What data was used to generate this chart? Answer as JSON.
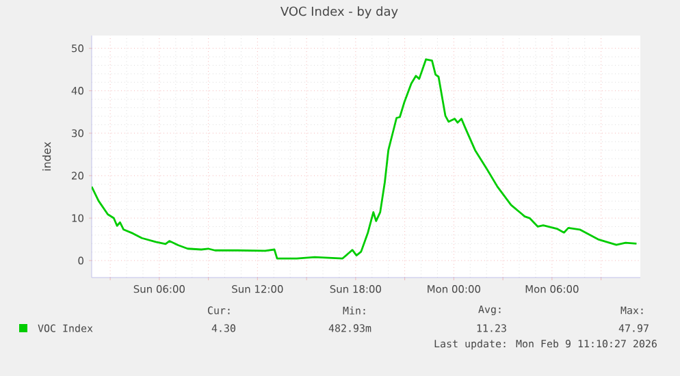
{
  "chart_data": {
    "type": "line",
    "title": "VOC Index - by day",
    "ylabel": "index",
    "x": [
      "2026-02-08T01:52",
      "2026-02-08T02:17",
      "2026-02-08T02:51",
      "2026-02-08T03:13",
      "2026-02-08T03:25",
      "2026-02-08T03:36",
      "2026-02-08T03:49",
      "2026-02-08T04:23",
      "2026-02-08T04:56",
      "2026-02-08T05:47",
      "2026-02-08T06:23",
      "2026-02-08T06:37",
      "2026-02-08T07:10",
      "2026-02-08T07:44",
      "2026-02-08T08:34",
      "2026-02-08T08:59",
      "2026-02-08T09:24",
      "2026-02-08T10:48",
      "2026-02-08T12:28",
      "2026-02-08T13:02",
      "2026-02-08T13:12",
      "2026-02-08T14:24",
      "2026-02-08T15:30",
      "2026-02-08T17:12",
      "2026-02-08T17:48",
      "2026-02-08T18:03",
      "2026-02-08T18:20",
      "2026-02-08T18:45",
      "2026-02-08T19:05",
      "2026-02-08T19:15",
      "2026-02-08T19:30",
      "2026-02-08T19:47",
      "2026-02-08T20:00",
      "2026-02-08T20:17",
      "2026-02-08T20:30",
      "2026-02-08T20:42",
      "2026-02-08T20:59",
      "2026-02-08T21:24",
      "2026-02-08T21:41",
      "2026-02-08T21:53",
      "2026-02-08T22:18",
      "2026-02-08T22:40",
      "2026-02-08T22:53",
      "2026-02-08T23:04",
      "2026-02-08T23:29",
      "2026-02-08T23:41",
      "2026-02-09T00:03",
      "2026-02-09T00:14",
      "2026-02-09T00:28",
      "2026-02-09T00:41",
      "2026-02-09T01:18",
      "2026-02-09T02:00",
      "2026-02-09T02:40",
      "2026-02-09T03:30",
      "2026-02-09T04:20",
      "2026-02-09T04:38",
      "2026-02-09T05:08",
      "2026-02-09T05:28",
      "2026-02-09T06:18",
      "2026-02-09T06:44",
      "2026-02-09T07:00",
      "2026-02-09T07:42",
      "2026-02-09T08:49",
      "2026-02-09T09:56",
      "2026-02-09T10:30",
      "2026-02-09T11:10"
    ],
    "series": [
      {
        "name": "VOC Index",
        "color": "#00cc00",
        "values": [
          17.4,
          14.1,
          10.9,
          10.0,
          8.2,
          9.0,
          7.3,
          6.4,
          5.3,
          4.4,
          3.9,
          4.6,
          3.6,
          2.8,
          2.6,
          2.8,
          2.4,
          2.4,
          2.3,
          2.6,
          0.5,
          0.5,
          0.8,
          0.5,
          2.5,
          1.2,
          2.1,
          6.6,
          11.4,
          9.3,
          11.4,
          18.5,
          26.0,
          30.3,
          33.6,
          33.8,
          37.4,
          41.7,
          43.5,
          42.8,
          47.4,
          47.1,
          43.8,
          43.3,
          34.1,
          32.7,
          33.4,
          32.5,
          33.4,
          31.4,
          26.0,
          21.7,
          17.4,
          13.1,
          10.4,
          10.0,
          8.0,
          8.3,
          7.5,
          6.6,
          7.7,
          7.3,
          5.0,
          3.7,
          4.2,
          4.0
        ]
      }
    ],
    "xlim": [
      "2026-02-08T01:52",
      "2026-02-09T11:24"
    ],
    "ylim": [
      -4,
      53
    ],
    "xticks": [
      {
        "value": "2026-02-08T03:00",
        "label": null
      },
      {
        "value": "2026-02-08T06:00",
        "label": "Sun 06:00"
      },
      {
        "value": "2026-02-08T09:00",
        "label": null
      },
      {
        "value": "2026-02-08T12:00",
        "label": "Sun 12:00"
      },
      {
        "value": "2026-02-08T15:00",
        "label": null
      },
      {
        "value": "2026-02-08T18:00",
        "label": "Sun 18:00"
      },
      {
        "value": "2026-02-08T21:00",
        "label": null
      },
      {
        "value": "2026-02-09T00:00",
        "label": "Mon 00:00"
      },
      {
        "value": "2026-02-09T03:00",
        "label": null
      },
      {
        "value": "2026-02-09T06:00",
        "label": "Mon 06:00"
      },
      {
        "value": "2026-02-09T09:00",
        "label": null
      }
    ],
    "yticks": [
      0,
      10,
      20,
      30,
      40,
      50
    ],
    "grid": true,
    "legend": "bottom left",
    "marker": "none",
    "line_style": "solid",
    "annotations": [
      "Cur:",
      "Min:",
      "Avg:",
      "Max:",
      "4.30",
      "482.93m",
      "11.23",
      "47.97",
      "Last update: Mon Feb  9 11:10:27 2026"
    ]
  }
}
